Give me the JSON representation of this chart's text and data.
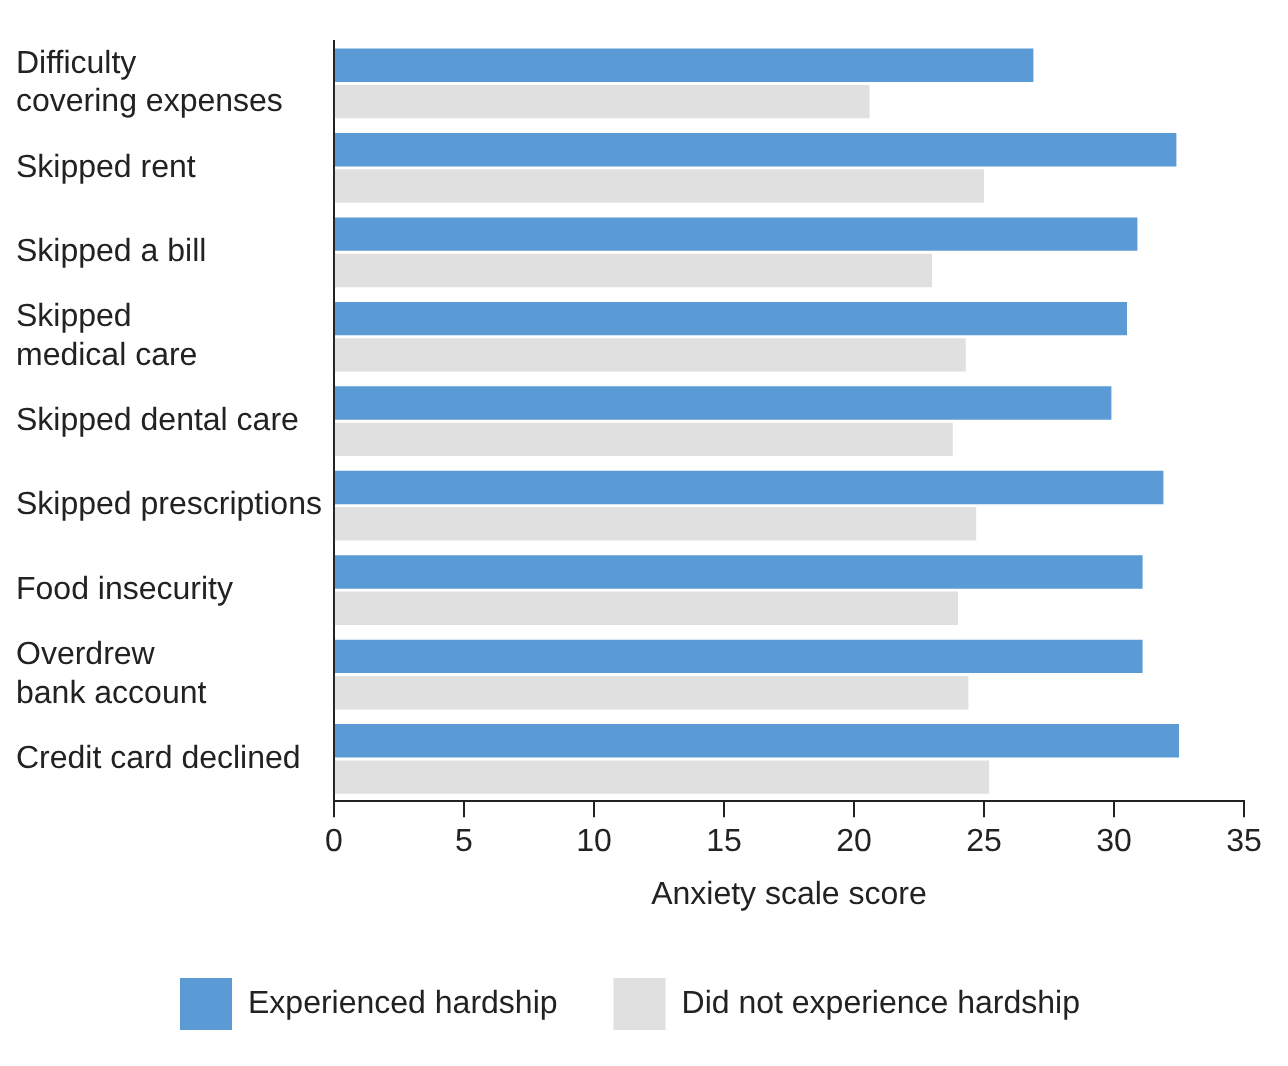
{
  "chart_data": {
    "type": "bar",
    "orientation": "horizontal",
    "xlabel": "Anxiety scale score",
    "categories": [
      "Difficulty\ncovering expenses",
      "Skipped rent",
      "Skipped a bill",
      "Skipped\nmedical care",
      "Skipped dental care",
      "Skipped prescriptions",
      "Food insecurity",
      "Overdrew\nbank account",
      "Credit card declined"
    ],
    "series": [
      {
        "name": "Experienced hardship",
        "color": "#5b9bd5",
        "values": [
          26.9,
          32.4,
          30.9,
          30.5,
          29.9,
          31.9,
          31.1,
          31.1,
          32.5
        ]
      },
      {
        "name": "Did not experience hardship",
        "color": "#e0e0e0",
        "values": [
          20.6,
          25.0,
          23.0,
          24.3,
          23.8,
          24.7,
          24.0,
          24.4,
          25.2
        ]
      }
    ],
    "xlim": [
      0,
      35
    ],
    "xticks": [
      0,
      5,
      10,
      15,
      20,
      25,
      30,
      35
    ],
    "grid": false,
    "legend": "bottom"
  }
}
